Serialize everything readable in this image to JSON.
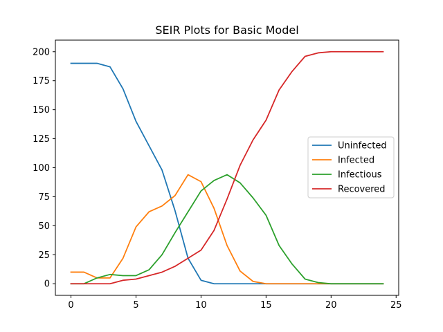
{
  "chart_data": {
    "type": "line",
    "title": "SEIR Plots for Basic Model",
    "xlabel": "",
    "ylabel": "",
    "xlim": [
      -1.2,
      25.2
    ],
    "ylim": [
      -10,
      210
    ],
    "xticks": [
      0,
      5,
      10,
      15,
      20,
      25
    ],
    "yticks": [
      0,
      25,
      50,
      75,
      100,
      125,
      150,
      175,
      200
    ],
    "grid": false,
    "legend_position": "center-right",
    "x": [
      0,
      1,
      2,
      3,
      4,
      5,
      6,
      7,
      8,
      9,
      10,
      11,
      12,
      13,
      14,
      15,
      16,
      17,
      18,
      19,
      20,
      21,
      22,
      23,
      24
    ],
    "series": [
      {
        "name": "Uninfected",
        "color": "#1f77b4",
        "values": [
          190,
          190,
          190,
          187,
          168,
          140,
          119,
          98,
          63,
          22,
          3,
          0,
          0,
          0,
          0,
          0,
          0,
          0,
          0,
          0,
          0,
          0,
          0,
          0,
          0
        ]
      },
      {
        "name": "Infected",
        "color": "#ff7f0e",
        "values": [
          10,
          10,
          5,
          5,
          22,
          49,
          62,
          67,
          76,
          94,
          88,
          65,
          33,
          11,
          2,
          0,
          0,
          0,
          0,
          0,
          0,
          0,
          0,
          0,
          0
        ]
      },
      {
        "name": "Infectious",
        "color": "#2ca02c",
        "values": [
          0,
          0,
          5,
          8,
          7,
          7,
          12,
          25,
          44,
          62,
          80,
          89,
          94,
          87,
          74,
          59,
          33,
          17,
          4,
          1,
          0,
          0,
          0,
          0,
          0
        ]
      },
      {
        "name": "Recovered",
        "color": "#d62728",
        "values": [
          0,
          0,
          0,
          0,
          3,
          4,
          7,
          10,
          15,
          22,
          29,
          46,
          73,
          102,
          124,
          141,
          167,
          183,
          196,
          199,
          200,
          200,
          200,
          200,
          200
        ]
      }
    ]
  }
}
